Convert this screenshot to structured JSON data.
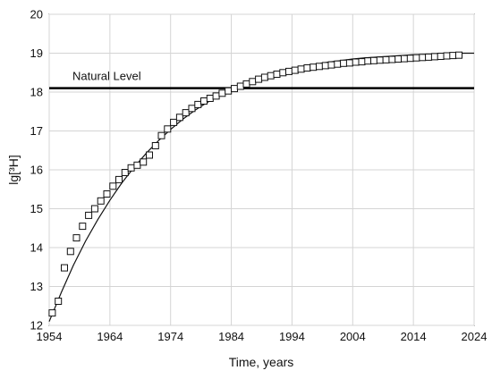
{
  "chart_data": {
    "type": "scatter",
    "title": "",
    "xlabel": "Time, years",
    "ylabel": "lg[³H]",
    "xlim": [
      1954,
      2024
    ],
    "ylim": [
      12,
      20
    ],
    "xticks": [
      1954,
      1964,
      1974,
      1984,
      1994,
      2004,
      2014,
      2024
    ],
    "yticks": [
      12,
      13,
      14,
      15,
      16,
      17,
      18,
      19,
      20
    ],
    "grid": true,
    "legend": "none",
    "reference_line": {
      "y": 18.1,
      "label": "Natural Level"
    },
    "series": [
      {
        "marker": "square-open",
        "x": [
          1954.5,
          1955.5,
          1956.5,
          1957.5,
          1958.5,
          1959.5,
          1960.5,
          1961.5,
          1962.5,
          1963.5,
          1964.5,
          1965.5,
          1966.5,
          1967.5,
          1968.5,
          1969.5,
          1970.5,
          1971.5,
          1972.5,
          1973.5,
          1974.5,
          1975.5,
          1976.5,
          1977.5,
          1978.5,
          1979.5,
          1980.5,
          1981.5,
          1982.5,
          1983.5,
          1984.5,
          1985.5,
          1986.5,
          1987.5,
          1988.5,
          1989.5,
          1990.5,
          1991.5,
          1992.5,
          1993.5,
          1994.5,
          1995.5,
          1996.5,
          1997.5,
          1998.5,
          1999.5,
          2000.5,
          2001.5,
          2002.5,
          2003.5,
          2004.5,
          2005.5,
          2006.5,
          2007.5,
          2008.5,
          2009.5,
          2010.5,
          2011.5,
          2012.5,
          2013.5,
          2014.5,
          2015.5,
          2016.5,
          2017.5,
          2018.5,
          2019.5,
          2020.5,
          2021.5
        ],
        "y": [
          12.32,
          12.62,
          13.48,
          13.9,
          14.25,
          14.55,
          14.83,
          15.0,
          15.2,
          15.38,
          15.58,
          15.75,
          15.93,
          16.05,
          16.12,
          16.2,
          16.38,
          16.62,
          16.88,
          17.05,
          17.22,
          17.35,
          17.47,
          17.58,
          17.68,
          17.77,
          17.84,
          17.9,
          17.97,
          18.03,
          18.09,
          18.15,
          18.21,
          18.27,
          18.33,
          18.38,
          18.42,
          18.46,
          18.5,
          18.53,
          18.56,
          18.59,
          18.62,
          18.64,
          18.66,
          18.68,
          18.7,
          18.72,
          18.74,
          18.75,
          18.77,
          18.78,
          18.8,
          18.81,
          18.82,
          18.83,
          18.84,
          18.85,
          18.86,
          18.87,
          18.88,
          18.89,
          18.9,
          18.91,
          18.92,
          18.93,
          18.94,
          18.95
        ]
      },
      {
        "marker": "line",
        "x": [
          1954,
          1956,
          1958,
          1960,
          1962,
          1964,
          1966,
          1968,
          1970,
          1972,
          1974,
          1976,
          1978,
          1980,
          1982,
          1984,
          1986,
          1988,
          1990,
          1992,
          1994,
          1996,
          1998,
          2000,
          2002,
          2004,
          2006,
          2008,
          2010,
          2012,
          2014,
          2016,
          2018,
          2020,
          2022,
          2024
        ],
        "y": [
          12.1,
          12.85,
          13.55,
          14.17,
          14.72,
          15.22,
          15.67,
          16.07,
          16.43,
          16.75,
          17.04,
          17.3,
          17.53,
          17.73,
          17.91,
          18.06,
          18.2,
          18.32,
          18.42,
          18.51,
          18.59,
          18.66,
          18.72,
          18.77,
          18.81,
          18.85,
          18.88,
          18.9,
          18.92,
          18.94,
          18.96,
          18.97,
          18.98,
          18.99,
          19.0,
          19.0
        ]
      }
    ]
  }
}
